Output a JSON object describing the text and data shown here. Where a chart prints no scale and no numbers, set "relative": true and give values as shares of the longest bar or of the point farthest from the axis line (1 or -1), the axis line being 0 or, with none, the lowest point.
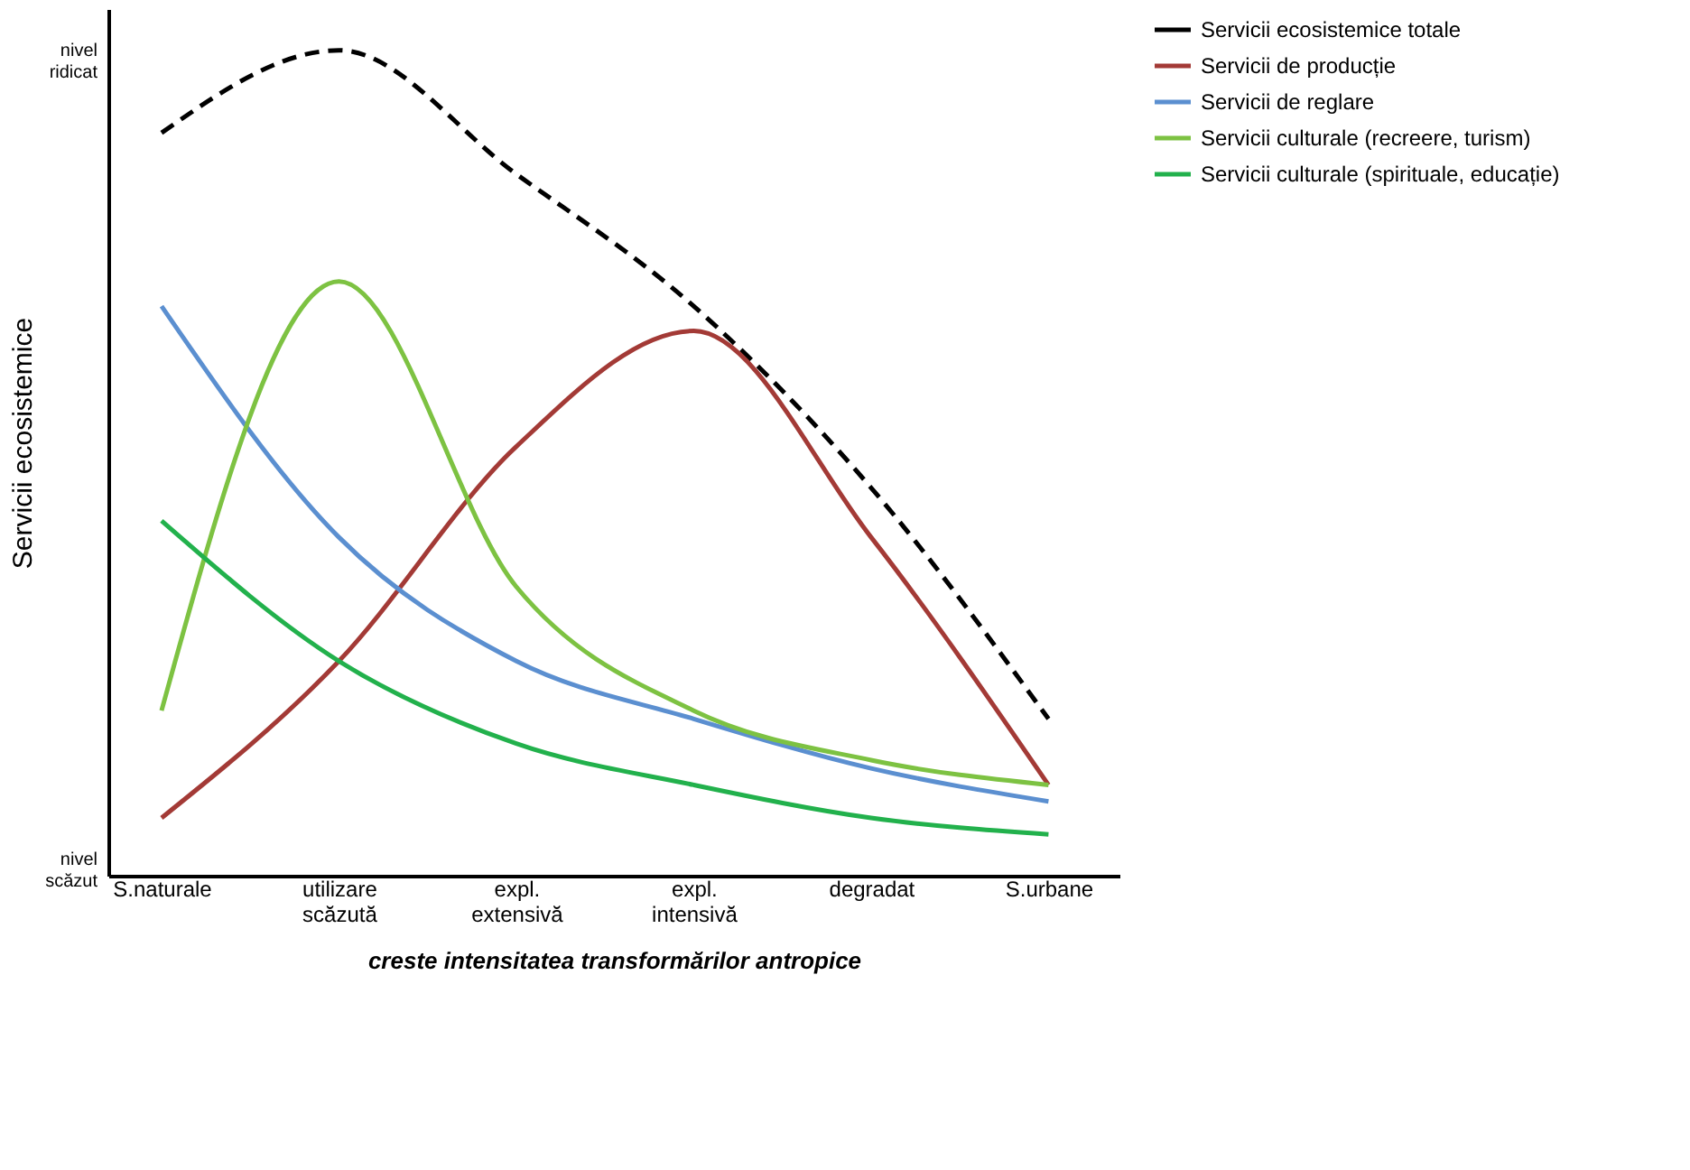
{
  "chart_data": {
    "type": "line",
    "relative": true,
    "xlabel": "creste intensitatea transformărilor antropice",
    "ylabel": "Servicii ecosistemice",
    "annotations": [
      "nivel ridicat",
      "nivel scăzut"
    ],
    "categories": [
      "S.naturale",
      "utilizare scăzută",
      "expl. extensivă",
      "expl. intensivă",
      "degradat",
      "S.urbane"
    ],
    "series": [
      {
        "name": "Servicii ecosistemice totale",
        "color": "#000000",
        "line_style": "dashed",
        "values": [
          0.9,
          1.0,
          0.85,
          0.69,
          0.47,
          0.19
        ]
      },
      {
        "name": "Servicii de producție",
        "color": "#a33a36",
        "line_style": "solid",
        "values": [
          0.07,
          0.26,
          0.52,
          0.66,
          0.41,
          0.11
        ]
      },
      {
        "name": "Servicii de reglare",
        "color": "#5b8fd0",
        "line_style": "solid",
        "values": [
          0.69,
          0.41,
          0.26,
          0.19,
          0.13,
          0.09
        ]
      },
      {
        "name": "Servicii culturale (recreere, turism)",
        "color": "#7dc242",
        "line_style": "solid",
        "values": [
          0.2,
          0.72,
          0.35,
          0.2,
          0.14,
          0.11
        ]
      },
      {
        "name": "Servicii culturale (spirituale, educație)",
        "color": "#22b14c",
        "line_style": "solid",
        "values": [
          0.43,
          0.26,
          0.16,
          0.11,
          0.07,
          0.05
        ]
      }
    ],
    "legend": "right",
    "grid": false,
    "marker": "none"
  }
}
